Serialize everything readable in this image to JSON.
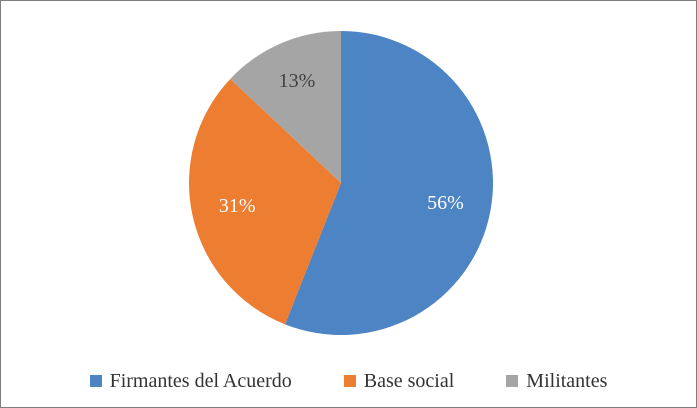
{
  "chart_data": {
    "type": "pie",
    "title": "",
    "labels": [
      "Firmantes del Acuerdo",
      "Base social",
      "Militantes"
    ],
    "values": [
      56,
      31,
      13
    ],
    "data_labels": [
      "56%",
      "31%",
      "13%"
    ],
    "data_label_colors": [
      "#ffffff",
      "#ffffff",
      "#404040"
    ],
    "colors": [
      "#4d84c4",
      "#ed7d31",
      "#a5a5a5"
    ],
    "start_angle_deg": 0,
    "direction": "clockwise",
    "legend_position": "bottom"
  },
  "legend": {
    "items": [
      {
        "label": "Firmantes del Acuerdo",
        "color": "#4d84c4"
      },
      {
        "label": "Base social",
        "color": "#ed7d31"
      },
      {
        "label": "Militantes",
        "color": "#a5a5a5"
      }
    ]
  }
}
